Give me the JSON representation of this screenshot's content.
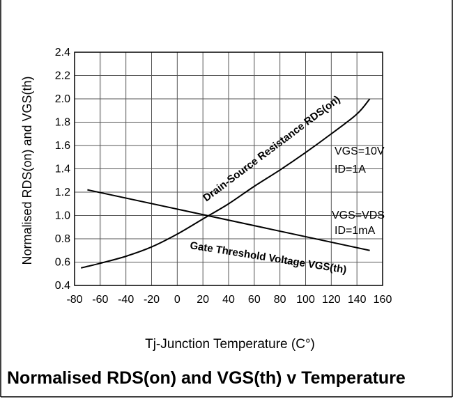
{
  "chart_data": {
    "type": "line",
    "title": "Normalised RDS(on) and VGS(th) v Temperature",
    "xlabel": "Tj-Junction Temperature (C°)",
    "ylabel": "Normalised RDS(on) and VGS(th)",
    "xlim": [
      -80,
      160
    ],
    "ylim": [
      0.4,
      2.4
    ],
    "x_ticks": [
      "-80",
      "-60",
      "-40",
      "-20",
      "0",
      "20",
      "40",
      "60",
      "80",
      "100",
      "120",
      "140",
      "160"
    ],
    "y_ticks": [
      "0.4",
      "0.6",
      "0.8",
      "1.0",
      "1.2",
      "1.4",
      "1.6",
      "1.8",
      "2.0",
      "2.2",
      "2.4"
    ],
    "grid": true,
    "series": [
      {
        "name": "Drain-Source Resistance RDS(on)",
        "x": [
          -75,
          -60,
          -40,
          -20,
          0,
          20,
          40,
          60,
          80,
          100,
          120,
          140,
          150
        ],
        "y": [
          0.55,
          0.59,
          0.65,
          0.73,
          0.84,
          0.97,
          1.1,
          1.25,
          1.39,
          1.54,
          1.7,
          1.87,
          2.0
        ]
      },
      {
        "name": "Gate Threshold Voltage VGS(th)",
        "x": [
          -70,
          150
        ],
        "y": [
          1.22,
          0.7
        ]
      }
    ],
    "annotations": [
      {
        "text": "VGS=10V"
      },
      {
        "text": "ID=1A"
      },
      {
        "text": "VGS=VDS"
      },
      {
        "text": "ID=1mA"
      }
    ]
  }
}
